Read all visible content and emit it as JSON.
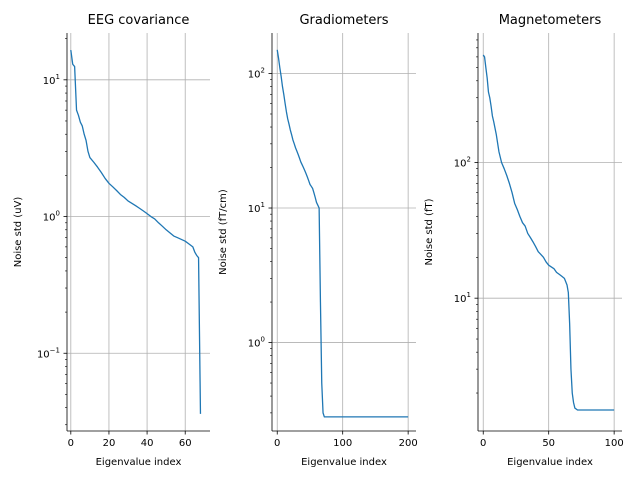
{
  "chart_data": [
    {
      "type": "line",
      "title": "EEG covariance",
      "xlabel": "Eigenvalue index",
      "ylabel": "Noise std (uV)",
      "yscale": "log",
      "xlim": [
        -2,
        73
      ],
      "ylim": [
        0.027,
        22
      ],
      "xticks": [
        0,
        20,
        40,
        60
      ],
      "yticks": [
        {
          "value": 0.1,
          "base": "10",
          "exp": "−1"
        },
        {
          "value": 1,
          "base": "10",
          "exp": "0"
        },
        {
          "value": 10,
          "base": "10",
          "exp": "1"
        }
      ],
      "grid": true,
      "color": "#1f77b4",
      "series": [
        {
          "x": [
            0,
            1,
            2,
            3,
            4,
            5,
            6,
            7,
            8,
            9,
            10,
            12,
            14,
            16,
            18,
            20,
            22,
            24,
            26,
            28,
            30,
            32,
            34,
            36,
            38,
            40,
            42,
            44,
            46,
            48,
            50,
            52,
            54,
            56,
            58,
            60,
            62,
            64,
            65,
            66,
            67,
            68
          ],
          "y": [
            16.5,
            13.0,
            12.5,
            6.0,
            5.5,
            4.9,
            4.6,
            4.0,
            3.6,
            3.0,
            2.7,
            2.5,
            2.3,
            2.1,
            1.9,
            1.75,
            1.65,
            1.55,
            1.45,
            1.38,
            1.3,
            1.25,
            1.2,
            1.15,
            1.1,
            1.05,
            1.0,
            0.96,
            0.9,
            0.85,
            0.8,
            0.76,
            0.72,
            0.7,
            0.68,
            0.66,
            0.63,
            0.6,
            0.55,
            0.52,
            0.5,
            0.036
          ]
        }
      ]
    },
    {
      "type": "line",
      "title": "Gradiometers",
      "xlabel": "Eigenvalue index",
      "ylabel": "Noise std (fT/cm)",
      "yscale": "log",
      "xlim": [
        -8,
        212
      ],
      "ylim": [
        0.22,
        200
      ],
      "xticks": [
        0,
        100,
        200
      ],
      "yticks": [
        {
          "value": 1,
          "base": "10",
          "exp": "0"
        },
        {
          "value": 10,
          "base": "10",
          "exp": "1"
        },
        {
          "value": 100,
          "base": "10",
          "exp": "2"
        }
      ],
      "grid": true,
      "color": "#1f77b4",
      "series": [
        {
          "x": [
            0,
            2,
            4,
            6,
            8,
            10,
            12,
            14,
            16,
            18,
            20,
            22,
            24,
            26,
            28,
            30,
            32,
            34,
            36,
            38,
            40,
            42,
            44,
            46,
            48,
            50,
            52,
            54,
            56,
            58,
            60,
            62,
            64,
            66,
            68,
            70,
            72,
            74,
            76,
            80,
            100,
            150,
            200
          ],
          "y": [
            150,
            130,
            110,
            95,
            80,
            70,
            60,
            52,
            46,
            42,
            38,
            35,
            32,
            30,
            28,
            26.5,
            25,
            23.5,
            22,
            21,
            20,
            19,
            18,
            17,
            16,
            15,
            14.5,
            14,
            13,
            12,
            11,
            10.5,
            10,
            2.0,
            0.5,
            0.3,
            0.28,
            0.28,
            0.28,
            0.28,
            0.28,
            0.28,
            0.28
          ]
        }
      ]
    },
    {
      "type": "line",
      "title": "Magnetometers",
      "xlabel": "Eigenvalue index",
      "ylabel": "Noise std (fT)",
      "yscale": "log",
      "xlim": [
        -4,
        106
      ],
      "ylim": [
        1.05,
        900
      ],
      "xticks": [
        0,
        50,
        100
      ],
      "yticks": [
        {
          "value": 10,
          "base": "10",
          "exp": "1"
        },
        {
          "value": 100,
          "base": "10",
          "exp": "2"
        }
      ],
      "grid": true,
      "color": "#1f77b4",
      "series": [
        {
          "x": [
            0,
            1,
            2,
            3,
            4,
            5,
            6,
            7,
            8,
            10,
            12,
            14,
            16,
            18,
            20,
            22,
            24,
            26,
            28,
            30,
            32,
            34,
            36,
            38,
            40,
            42,
            44,
            46,
            48,
            50,
            52,
            54,
            56,
            58,
            60,
            62,
            64,
            65,
            66,
            67,
            68,
            69,
            70,
            72,
            75,
            80,
            90,
            100
          ],
          "y": [
            620,
            600,
            500,
            420,
            330,
            300,
            260,
            220,
            200,
            160,
            120,
            100,
            90,
            80,
            70,
            60,
            50,
            45,
            40,
            36,
            34,
            30,
            28,
            26,
            24,
            22,
            21,
            20,
            18.5,
            17.5,
            17,
            16.5,
            15.5,
            15,
            14.5,
            14,
            12.5,
            11,
            6.5,
            3.0,
            2.0,
            1.7,
            1.55,
            1.5,
            1.5,
            1.5,
            1.5,
            1.5
          ]
        }
      ]
    }
  ]
}
